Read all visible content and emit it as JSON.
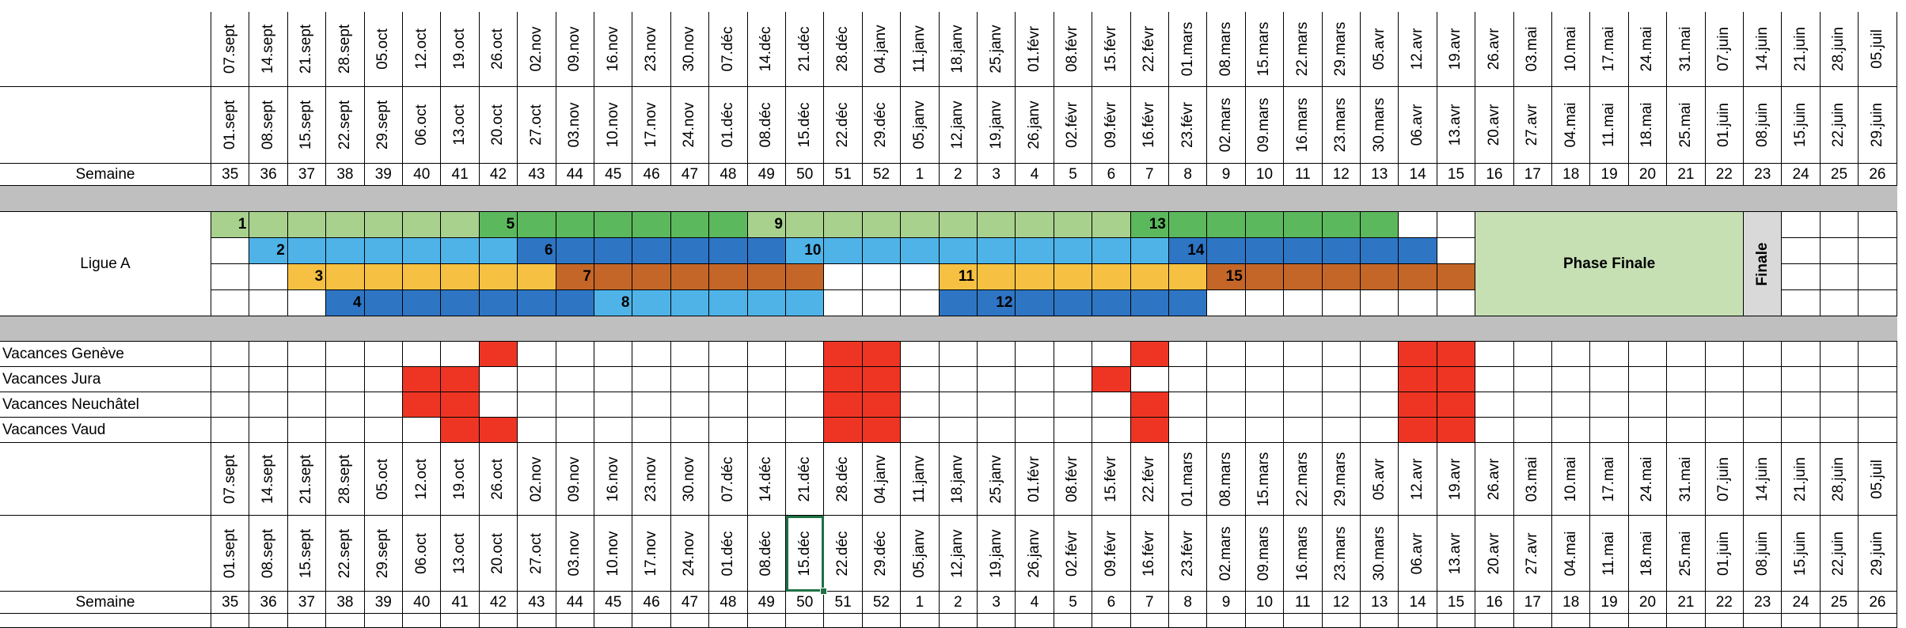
{
  "header": {
    "top_dates": [
      "07.sept",
      "14.sept",
      "21.sept",
      "28.sept",
      "05.oct",
      "12.oct",
      "19.oct",
      "26.oct",
      "02.nov",
      "09.nov",
      "16.nov",
      "23.nov",
      "30.nov",
      "07.déc",
      "14.déc",
      "21.déc",
      "28.déc",
      "04.janv",
      "11.janv",
      "18.janv",
      "25.janv",
      "01.févr",
      "08.févr",
      "15.févr",
      "22.févr",
      "01.mars",
      "08.mars",
      "15.mars",
      "22.mars",
      "29.mars",
      "05.avr",
      "12.avr",
      "19.avr",
      "26.avr",
      "03.mai",
      "10.mai",
      "17.mai",
      "24.mai",
      "31.mai",
      "07.juin",
      "14.juin",
      "21.juin",
      "28.juin",
      "05.juil"
    ],
    "start_dates": [
      "01.sept",
      "08.sept",
      "15.sept",
      "22.sept",
      "29.sept",
      "06.oct",
      "13.oct",
      "20.oct",
      "27.oct",
      "03.nov",
      "10.nov",
      "17.nov",
      "24.nov",
      "01.déc",
      "08.déc",
      "15.déc",
      "22.déc",
      "29.déc",
      "05.janv",
      "12.janv",
      "19.janv",
      "26.janv",
      "02.févr",
      "09.févr",
      "16.févr",
      "23.févr",
      "02.mars",
      "09.mars",
      "16.mars",
      "23.mars",
      "30.mars",
      "06.avr",
      "13.avr",
      "20.avr",
      "27.avr",
      "04.mai",
      "11.mai",
      "18.mai",
      "25.mai",
      "01.juin",
      "08.juin",
      "15.juin",
      "22.juin",
      "29.juin"
    ],
    "week_label": "Semaine",
    "weeks": [
      "35",
      "36",
      "37",
      "38",
      "39",
      "40",
      "41",
      "42",
      "43",
      "44",
      "45",
      "46",
      "47",
      "48",
      "49",
      "50",
      "51",
      "52",
      "1",
      "2",
      "3",
      "4",
      "5",
      "6",
      "7",
      "8",
      "9",
      "10",
      "11",
      "12",
      "13",
      "14",
      "15",
      "16",
      "17",
      "18",
      "19",
      "20",
      "21",
      "22",
      "23",
      "24",
      "25",
      "26"
    ]
  },
  "league": {
    "label": "Ligue A",
    "phase_finale": "Phase Finale",
    "finale": "Finale",
    "colors": {
      "lightgreen": "#a9d18e",
      "green": "#5cb85c",
      "lightblue": "#4fb3e8",
      "blue": "#2e75c4",
      "yellow": "#f6c142",
      "orange": "#c46628",
      "phase": "#c6e0b4",
      "finale": "#d9d9d9"
    },
    "rows": [
      {
        "segments": [
          [
            0,
            7,
            "lightgreen"
          ],
          [
            7,
            14,
            "green"
          ],
          [
            14,
            24,
            "lightgreen"
          ],
          [
            24,
            31,
            "green"
          ]
        ],
        "rounds": [
          [
            0,
            "1"
          ],
          [
            7,
            "5"
          ],
          [
            14,
            "9"
          ],
          [
            24,
            "13"
          ]
        ]
      },
      {
        "segments": [
          [
            1,
            8,
            "lightblue"
          ],
          [
            8,
            15,
            "blue"
          ],
          [
            15,
            25,
            "lightblue"
          ],
          [
            25,
            32,
            "blue"
          ]
        ],
        "rounds": [
          [
            1,
            "2"
          ],
          [
            8,
            "6"
          ],
          [
            15,
            "10"
          ],
          [
            25,
            "14"
          ]
        ]
      },
      {
        "segments": [
          [
            2,
            9,
            "yellow"
          ],
          [
            9,
            16,
            "orange"
          ],
          [
            19,
            26,
            "yellow"
          ],
          [
            26,
            33,
            "orange"
          ]
        ],
        "rounds": [
          [
            2,
            "3"
          ],
          [
            9,
            "7"
          ],
          [
            19,
            "11"
          ],
          [
            26,
            "15"
          ]
        ]
      },
      {
        "segments": [
          [
            3,
            10,
            "blue"
          ],
          [
            10,
            16,
            "lightblue"
          ],
          [
            19,
            26,
            "blue"
          ]
        ],
        "rounds": [
          [
            3,
            "4"
          ],
          [
            10,
            "8"
          ],
          [
            20,
            "12"
          ]
        ]
      }
    ]
  },
  "holidays": {
    "color": "#ee3524",
    "rows": [
      {
        "label": "Vacances Genève",
        "weeks": [
          7,
          16,
          17,
          24,
          31,
          32
        ]
      },
      {
        "label": "Vacances Jura",
        "weeks": [
          5,
          6,
          16,
          17,
          23,
          31,
          32
        ]
      },
      {
        "label": "Vacances Neuchâtel",
        "weeks": [
          5,
          6,
          16,
          17,
          24,
          31,
          32
        ]
      },
      {
        "label": "Vacances Vaud",
        "weeks": [
          6,
          7,
          16,
          17,
          24,
          31,
          32
        ]
      }
    ]
  }
}
